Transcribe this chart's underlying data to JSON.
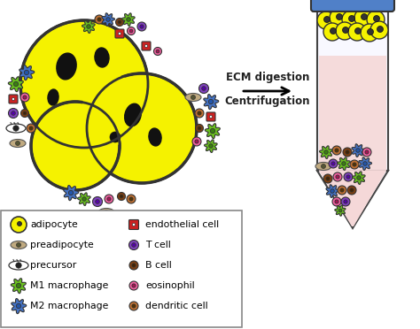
{
  "background_color": "#ffffff",
  "adipocyte_yellow": "#f5f200",
  "adipocyte_outline": "#333333",
  "lipid_black": "#111111",
  "cell_colors": {
    "m1_macrophage": "#6ac020",
    "m2_macrophage": "#4472c4",
    "t_cell": "#8040c0",
    "b_cell": "#804010",
    "eosinophil": "#f060a0",
    "dendritic": "#c07030",
    "preadipocyte": "#c0aa80",
    "endothelial": "#cc2222"
  },
  "tube_cap_color": "#5080c8",
  "tube_outline": "#444444",
  "pink_liquid": "#f5d8d8",
  "ecm_line1": "ECM digestion",
  "ecm_line2": "Centrifugation",
  "legend_left": [
    [
      "adipocyte",
      "adipo"
    ],
    [
      "preadipocyte",
      "preadipo"
    ],
    [
      "precursor",
      "precursor"
    ],
    [
      "M1 macrophage",
      "m1"
    ],
    [
      "M2 macrophage",
      "m2"
    ]
  ],
  "legend_right": [
    [
      "endothelial cell",
      "endo"
    ],
    [
      "T cell",
      "tcell"
    ],
    [
      "B cell",
      "bcell"
    ],
    [
      "eosinophil",
      "eosin"
    ],
    [
      "dendritic cell",
      "dendri"
    ]
  ]
}
